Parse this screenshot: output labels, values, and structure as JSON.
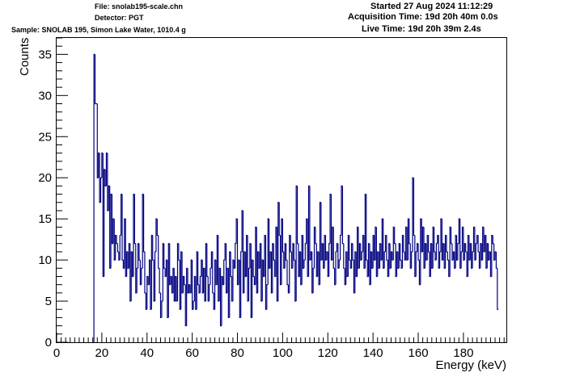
{
  "header": {
    "file": "File: snolab195-scale.chn",
    "detector": "Detector: PGT",
    "sample": "Sample: SNOLAB 195, Simon Lake Water, 1010.4 g",
    "started": "Started 27 Aug 2024 11:12:29",
    "acquisition_time": "Acquisition Time: 19d 20h 40m 0.0s",
    "live_time": "Live Time: 19d 20h 39m 2.4s"
  },
  "chart_data": {
    "type": "line",
    "style": "step-histogram",
    "line_color": "#000080",
    "xlabel": "Energy (keV)",
    "ylabel": "Counts",
    "xlim": [
      0,
      199
    ],
    "ylim": [
      0,
      37
    ],
    "x_ticks": [
      0,
      20,
      40,
      60,
      80,
      100,
      120,
      140,
      160,
      180
    ],
    "y_ticks": [
      0,
      5,
      10,
      15,
      20,
      25,
      30,
      35
    ],
    "x_tick_labels": [
      "0",
      "20",
      "40",
      "60",
      "80",
      "100",
      "120",
      "140",
      "160",
      "180"
    ],
    "y_tick_labels": [
      "0",
      "5",
      "10",
      "15",
      "20",
      "25",
      "30",
      "35"
    ],
    "grid": false,
    "legend": "none",
    "bin_start": 16.5,
    "bin_width": 0.5,
    "counts": [
      35,
      29,
      29,
      20,
      23,
      17,
      20,
      23,
      8,
      21,
      19,
      23,
      16,
      19,
      9,
      18,
      12,
      15,
      10,
      13,
      12,
      11,
      10,
      13,
      18,
      10,
      9,
      15,
      8,
      11,
      9,
      12,
      5,
      11,
      8,
      18,
      12,
      6,
      9,
      12,
      10,
      7,
      9,
      18,
      11,
      6,
      4,
      8,
      7,
      10,
      4,
      13,
      10,
      5,
      11,
      15,
      13,
      9,
      6,
      3,
      5,
      12,
      9,
      8,
      10,
      3,
      12,
      7,
      8,
      6,
      9,
      5,
      8,
      5,
      12,
      10,
      4,
      11,
      6,
      8,
      7,
      2,
      9,
      6,
      7,
      6,
      10,
      4,
      5,
      8,
      4,
      11,
      7,
      6,
      8,
      10,
      6,
      9,
      5,
      12,
      8,
      5,
      7,
      9,
      11,
      6,
      4,
      10,
      7,
      13,
      5,
      9,
      2,
      8,
      7,
      10,
      12,
      6,
      9,
      3,
      11,
      8,
      5,
      10,
      9,
      12,
      15,
      7,
      10,
      3,
      11,
      16,
      6,
      11,
      8,
      13,
      5,
      9,
      12,
      3,
      10,
      8,
      7,
      14,
      6,
      11,
      9,
      12,
      5,
      10,
      8,
      13,
      4,
      7,
      15,
      9,
      11,
      6,
      12,
      10,
      8,
      14,
      5,
      17,
      13,
      7,
      15,
      11,
      9,
      12,
      10,
      7,
      6,
      13,
      11,
      9,
      12,
      10,
      5,
      19,
      12,
      8,
      11,
      7,
      13,
      9,
      10,
      12,
      15,
      8,
      19,
      10,
      11,
      6,
      9,
      14,
      12,
      8,
      11,
      7,
      17,
      10,
      12,
      9,
      13,
      10,
      11,
      8,
      12,
      18,
      10,
      14,
      9,
      7,
      11,
      12,
      9,
      10,
      13,
      19,
      12,
      9,
      7,
      11,
      8,
      13,
      10,
      9,
      12,
      10,
      6,
      11,
      8,
      14,
      9,
      12,
      10,
      11,
      13,
      9,
      18,
      10,
      8,
      12,
      7,
      11,
      9,
      13,
      10,
      14,
      8,
      11,
      9,
      12,
      10,
      15,
      9,
      11,
      13,
      10,
      8,
      12,
      9,
      11,
      10,
      14,
      12,
      8,
      11,
      9,
      12,
      10,
      9,
      13,
      11,
      10,
      14,
      10,
      15,
      12,
      9,
      11,
      20,
      13,
      8,
      11,
      12,
      10,
      7,
      15,
      11,
      14,
      9,
      12,
      10,
      13,
      11,
      8,
      12,
      9,
      14,
      11,
      10,
      12,
      13,
      9,
      11,
      15,
      10,
      12,
      9,
      13,
      11,
      10,
      8,
      14,
      12,
      10,
      11,
      9,
      13,
      10,
      12,
      15,
      9,
      11,
      14,
      10,
      12,
      11,
      8,
      13,
      10,
      12,
      9,
      11,
      14,
      10,
      12,
      13,
      11,
      9,
      12,
      10,
      14,
      11,
      13,
      9,
      12,
      10,
      11,
      8,
      13,
      12,
      10,
      11,
      9,
      4
    ]
  }
}
